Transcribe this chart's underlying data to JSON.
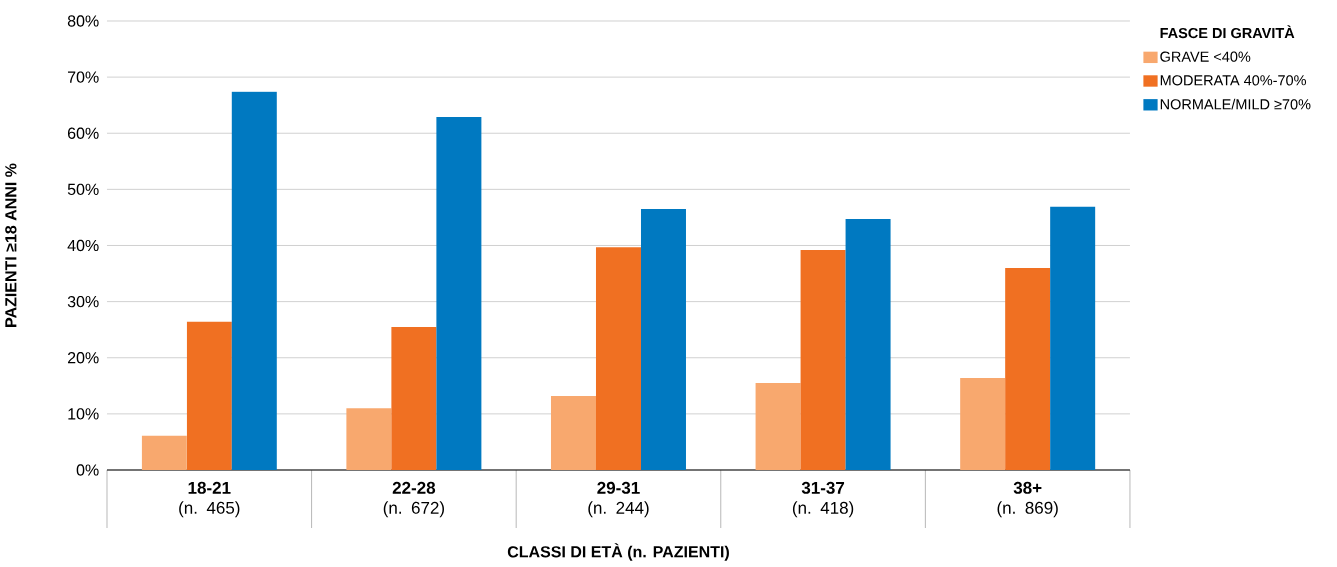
{
  "chart_data": {
    "type": "bar",
    "ylabel": "PAZIENTI ≥18 ANNI %",
    "xlabel": "CLASSI DI ETÀ (n. PAZIENTI)",
    "legend_title": "FASCE DI GRAVITÀ",
    "categories": [
      "**18-21** (n. 465)",
      "**22-28** (n. 672)",
      "**29-31** (n. 244)",
      "**31-37** (n. 418)",
      "**38+** (n. 869)"
    ],
    "series": [
      {
        "name": "GRAVE <40%",
        "color": "#f8a86e",
        "values": [
          6.1,
          11.0,
          13.2,
          15.5,
          16.4
        ]
      },
      {
        "name": "MODERATA 40%-70%",
        "color": "#f07022",
        "values": [
          26.4,
          25.5,
          39.7,
          39.2,
          36.0
        ]
      },
      {
        "name": "NORMALE/MILD ≥70%",
        "color": "#0079c1",
        "values": [
          67.4,
          62.9,
          46.5,
          44.7,
          46.9
        ]
      }
    ],
    "ylim": [
      0,
      80
    ],
    "yticks": [
      {
        "value": 0,
        "label": "0%"
      },
      {
        "value": 10,
        "label": "10%"
      },
      {
        "value": 20,
        "label": "20%"
      },
      {
        "value": 30,
        "label": "30%"
      },
      {
        "value": 40,
        "label": "40%"
      },
      {
        "value": 50,
        "label": "50%"
      },
      {
        "value": 60,
        "label": "60%"
      },
      {
        "value": 70,
        "label": "70%"
      },
      {
        "value": 80,
        "label": "80%"
      }
    ],
    "grid": "y",
    "legend": "right"
  }
}
